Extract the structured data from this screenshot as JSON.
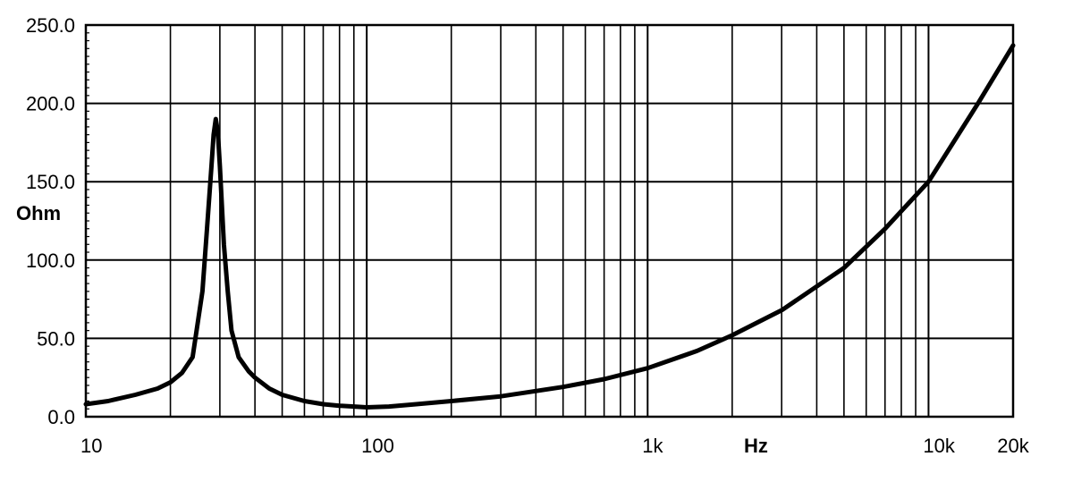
{
  "chart_data": {
    "type": "line",
    "title": "",
    "xlabel": "Hz",
    "ylabel": "Ohm",
    "xscale": "log",
    "xlim": [
      10,
      20000
    ],
    "ylim": [
      0,
      250
    ],
    "grid": true,
    "x_ticks": [
      {
        "value": 10,
        "label": "10"
      },
      {
        "value": 100,
        "label": "100"
      },
      {
        "value": 1000,
        "label": "1k"
      },
      {
        "value": 10000,
        "label": "10k"
      },
      {
        "value": 20000,
        "label": "20k"
      }
    ],
    "y_ticks": [
      {
        "value": 0,
        "label": "0.0"
      },
      {
        "value": 50,
        "label": "50.0"
      },
      {
        "value": 100,
        "label": "100.0"
      },
      {
        "value": 150,
        "label": "150.0"
      },
      {
        "value": 200,
        "label": "200.0"
      },
      {
        "value": 250,
        "label": "250.0"
      }
    ],
    "series": [
      {
        "color": "#000000",
        "x": [
          10,
          12,
          15,
          18,
          20,
          22,
          24,
          26,
          27,
          28,
          28.5,
          29,
          29.5,
          30,
          31,
          32,
          33,
          35,
          38,
          40,
          45,
          50,
          60,
          70,
          80,
          90,
          100,
          120,
          150,
          200,
          300,
          500,
          700,
          1000,
          1500,
          2000,
          3000,
          5000,
          7000,
          10000,
          15000,
          20000
        ],
        "y": [
          8,
          10,
          14,
          18,
          22,
          28,
          38,
          80,
          120,
          160,
          180,
          190,
          182,
          160,
          110,
          80,
          55,
          38,
          29,
          25,
          18,
          14,
          10,
          8,
          7,
          6.5,
          6,
          6.5,
          8,
          10,
          13,
          19,
          24,
          31,
          42,
          52,
          68,
          95,
          120,
          150,
          200,
          237
        ]
      }
    ]
  }
}
